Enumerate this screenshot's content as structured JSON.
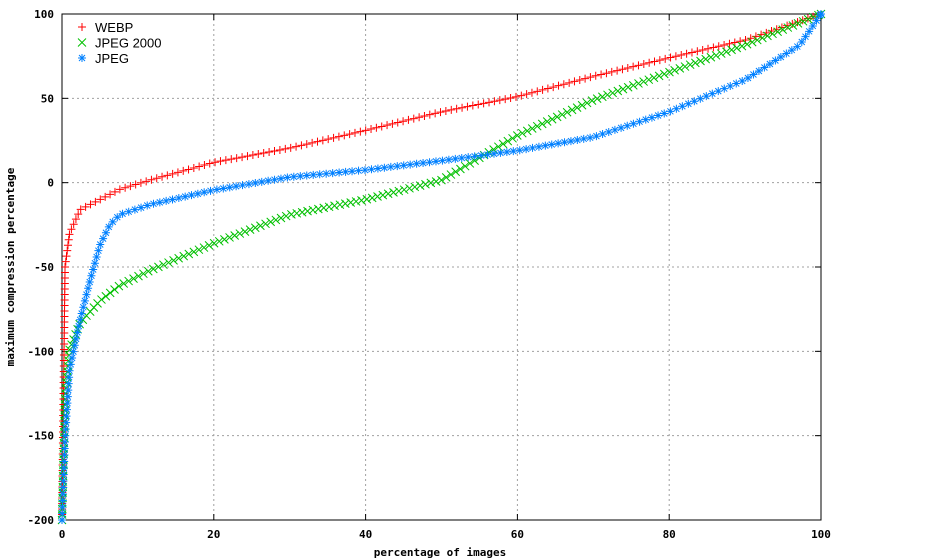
{
  "chart_data": {
    "type": "scatter",
    "title": "",
    "xlabel": "percentage of images",
    "ylabel": "maximum compression percentage",
    "xlim": [
      0,
      100
    ],
    "ylim": [
      -200,
      100
    ],
    "xticks": [
      "0",
      "20",
      "40",
      "60",
      "80",
      "100"
    ],
    "yticks": [
      "-200",
      "-150",
      "-100",
      "-50",
      "0",
      "50",
      "100"
    ],
    "grid": true,
    "legend_position": "top-left",
    "series": [
      {
        "name": "WEBP",
        "color": "#ff0000",
        "marker": "plus",
        "x": [
          0,
          0.4,
          1,
          2.4,
          5,
          7.6,
          11.6,
          20,
          30,
          40,
          50,
          60,
          70,
          80,
          90,
          100
        ],
        "y": [
          -200,
          -50,
          -30,
          -16,
          -10,
          -4,
          1.5,
          12,
          20.5,
          31,
          42,
          51,
          63,
          74,
          84.5,
          100
        ]
      },
      {
        "name": "JPEG 2000",
        "color": "#00c000",
        "marker": "cross",
        "x": [
          0,
          0.4,
          1,
          2.4,
          5,
          7.6,
          11.6,
          20,
          30,
          40,
          50,
          60,
          70,
          80,
          90,
          100
        ],
        "y": [
          -200,
          -129,
          -99,
          -83,
          -70,
          -61,
          -52,
          -36,
          -19,
          -10,
          1.5,
          28,
          49,
          65.5,
          81.6,
          100
        ]
      },
      {
        "name": "JPEG",
        "color": "#0080ff",
        "marker": "star",
        "x": [
          0,
          0.4,
          1,
          2.4,
          3.7,
          5,
          6.3,
          7.6,
          11.6,
          20,
          30,
          40,
          50,
          60,
          70,
          80,
          90,
          97.2,
          100
        ],
        "y": [
          -200,
          -152,
          -111,
          -81,
          -58,
          -37,
          -25,
          -19,
          -13,
          -4.4,
          3.3,
          7.5,
          13,
          19,
          27,
          42,
          61,
          81.6,
          100
        ]
      }
    ]
  }
}
